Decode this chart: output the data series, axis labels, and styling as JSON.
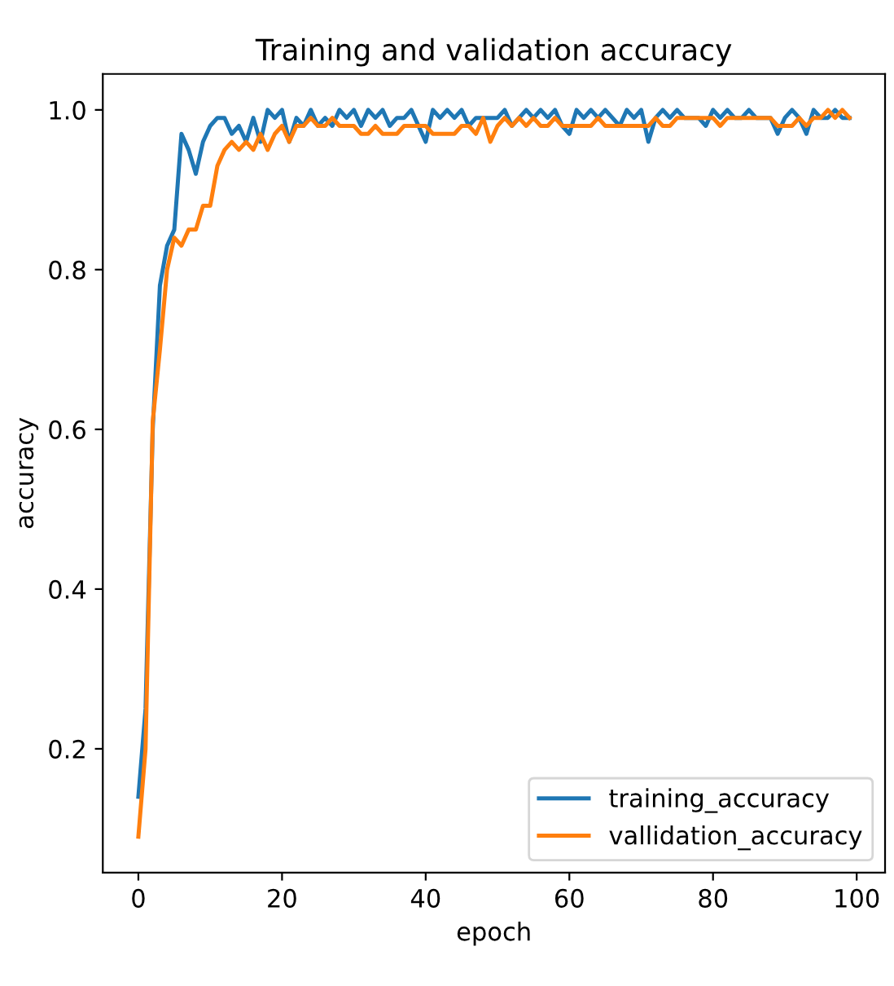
{
  "chart_data": {
    "type": "line",
    "title": "Training and validation accuracy",
    "xlabel": "epoch",
    "ylabel": "accuracy",
    "x": [
      0,
      1,
      2,
      3,
      4,
      5,
      6,
      7,
      8,
      9,
      10,
      11,
      12,
      13,
      14,
      15,
      16,
      17,
      18,
      19,
      20,
      21,
      22,
      23,
      24,
      25,
      26,
      27,
      28,
      29,
      30,
      31,
      32,
      33,
      34,
      35,
      36,
      37,
      38,
      39,
      40,
      41,
      42,
      43,
      44,
      45,
      46,
      47,
      48,
      49,
      50,
      51,
      52,
      53,
      54,
      55,
      56,
      57,
      58,
      59,
      60,
      61,
      62,
      63,
      64,
      65,
      66,
      67,
      68,
      69,
      70,
      71,
      72,
      73,
      74,
      75,
      76,
      77,
      78,
      79,
      80,
      81,
      82,
      83,
      84,
      85,
      86,
      87,
      88,
      89,
      90,
      91,
      92,
      93,
      94,
      95,
      96,
      97,
      98,
      99
    ],
    "series": [
      {
        "name": "training_accuracy",
        "color": "#1f77b4",
        "values": [
          0.14,
          0.25,
          0.6,
          0.78,
          0.83,
          0.85,
          0.97,
          0.95,
          0.92,
          0.96,
          0.98,
          0.99,
          0.99,
          0.97,
          0.98,
          0.96,
          0.99,
          0.96,
          1.0,
          0.99,
          1.0,
          0.96,
          0.99,
          0.98,
          1.0,
          0.98,
          0.99,
          0.98,
          1.0,
          0.99,
          1.0,
          0.98,
          1.0,
          0.99,
          1.0,
          0.98,
          0.99,
          0.99,
          1.0,
          0.98,
          0.96,
          1.0,
          0.99,
          1.0,
          0.99,
          1.0,
          0.98,
          0.99,
          0.99,
          0.99,
          0.99,
          1.0,
          0.98,
          0.99,
          1.0,
          0.99,
          1.0,
          0.99,
          1.0,
          0.98,
          0.97,
          1.0,
          0.99,
          1.0,
          0.99,
          1.0,
          0.99,
          0.98,
          1.0,
          0.99,
          1.0,
          0.96,
          0.99,
          1.0,
          0.99,
          1.0,
          0.99,
          0.99,
          0.99,
          0.98,
          1.0,
          0.99,
          1.0,
          0.99,
          0.99,
          1.0,
          0.99,
          0.99,
          0.99,
          0.97,
          0.99,
          1.0,
          0.99,
          0.97,
          1.0,
          0.99,
          0.99,
          1.0,
          0.99,
          0.99
        ]
      },
      {
        "name": "vallidation_accuracy",
        "color": "#ff7f0e",
        "values": [
          0.09,
          0.2,
          0.61,
          0.7,
          0.8,
          0.84,
          0.83,
          0.85,
          0.85,
          0.88,
          0.88,
          0.93,
          0.95,
          0.96,
          0.95,
          0.96,
          0.95,
          0.97,
          0.95,
          0.97,
          0.98,
          0.96,
          0.98,
          0.98,
          0.99,
          0.98,
          0.98,
          0.99,
          0.98,
          0.98,
          0.98,
          0.97,
          0.97,
          0.98,
          0.97,
          0.97,
          0.97,
          0.98,
          0.98,
          0.98,
          0.98,
          0.97,
          0.97,
          0.97,
          0.97,
          0.98,
          0.98,
          0.97,
          0.99,
          0.96,
          0.98,
          0.99,
          0.98,
          0.99,
          0.98,
          0.99,
          0.98,
          0.98,
          0.99,
          0.98,
          0.98,
          0.98,
          0.98,
          0.98,
          0.99,
          0.98,
          0.98,
          0.98,
          0.98,
          0.98,
          0.98,
          0.98,
          0.99,
          0.98,
          0.98,
          0.99,
          0.99,
          0.99,
          0.99,
          0.99,
          0.99,
          0.98,
          0.99,
          0.99,
          0.99,
          0.99,
          0.99,
          0.99,
          0.99,
          0.98,
          0.98,
          0.98,
          0.99,
          0.98,
          0.99,
          0.99,
          1.0,
          0.99,
          1.0,
          0.99
        ]
      }
    ],
    "xlim": [
      -4.95,
      103.95
    ],
    "xticks": [
      0,
      20,
      40,
      60,
      80,
      100
    ],
    "ylim": [
      0.045,
      1.045
    ],
    "yticks": [
      0.2,
      0.4,
      0.6,
      0.8,
      {
        "value": 1.0,
        "label": "1.0"
      }
    ],
    "legend": "lower right",
    "grid": false
  }
}
